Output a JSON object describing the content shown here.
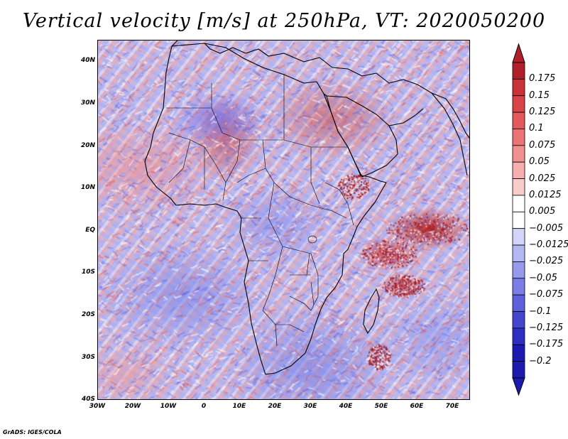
{
  "title": "Vertical velocity [m/s] at 250hPa, VT: 2020050200",
  "credit": "GrADS: IGES/COLA",
  "map": {
    "variable": "Vertical velocity",
    "units": "m/s",
    "level": "250hPa",
    "valid_time": "2020050200",
    "lon_range": [
      -30,
      75
    ],
    "lat_range": [
      -40,
      45
    ]
  },
  "lat_ticks": [
    {
      "value": 40,
      "label": "40N"
    },
    {
      "value": 30,
      "label": "30N"
    },
    {
      "value": 20,
      "label": "20N"
    },
    {
      "value": 10,
      "label": "10N"
    },
    {
      "value": 0,
      "label": "EQ"
    },
    {
      "value": -10,
      "label": "10S"
    },
    {
      "value": -20,
      "label": "20S"
    },
    {
      "value": -30,
      "label": "30S"
    },
    {
      "value": -40,
      "label": "40S"
    }
  ],
  "lon_ticks": [
    {
      "value": -30,
      "label": "30W"
    },
    {
      "value": -20,
      "label": "20W"
    },
    {
      "value": -10,
      "label": "10W"
    },
    {
      "value": 0,
      "label": "0"
    },
    {
      "value": 10,
      "label": "10E"
    },
    {
      "value": 20,
      "label": "20E"
    },
    {
      "value": 30,
      "label": "30E"
    },
    {
      "value": 40,
      "label": "40E"
    },
    {
      "value": 50,
      "label": "50E"
    },
    {
      "value": 60,
      "label": "60E"
    },
    {
      "value": 70,
      "label": "70E"
    }
  ],
  "colorbar": {
    "labels": [
      "0.175",
      "0.15",
      "0.125",
      "0.1",
      "0.075",
      "0.05",
      "0.025",
      "0.0125",
      "0.005",
      "−0.005",
      "−0.0125",
      "−0.025",
      "−0.05",
      "−0.075",
      "−0.1",
      "−0.125",
      "−0.175",
      "−0.2"
    ],
    "colors": [
      "#b0202a",
      "#c83238",
      "#d94448",
      "#e45a5c",
      "#ec7474",
      "#f29090",
      "#f6aeae",
      "#f9cccc",
      "#ffffff",
      "#ffffff",
      "#d2d4f8",
      "#b4b8f2",
      "#9699ec",
      "#7a7ee6",
      "#5f61dc",
      "#4446d0",
      "#2d2fc2",
      "#1d1ab0",
      "#1d1ab0"
    ]
  }
}
